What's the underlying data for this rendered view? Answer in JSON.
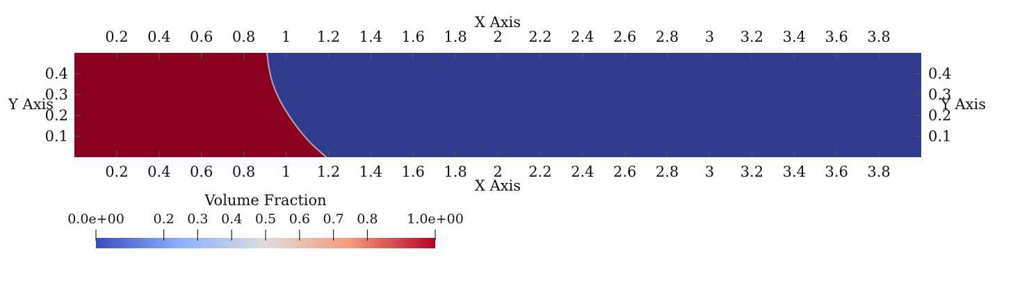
{
  "chart_data": {
    "type": "heatmap",
    "title": "",
    "xlabel": "X Axis",
    "ylabel": "Y Axis",
    "xlim": [
      0.0,
      4.0
    ],
    "ylim": [
      0.0,
      0.5
    ],
    "x_ticks": [
      "0.2",
      "0.4",
      "0.6",
      "0.8",
      "1",
      "1.2",
      "1.4",
      "1.6",
      "1.8",
      "2",
      "2.2",
      "2.4",
      "2.6",
      "2.8",
      "3",
      "3.2",
      "3.4",
      "3.6",
      "3.8"
    ],
    "x_tick_values": [
      0.2,
      0.4,
      0.6,
      0.8,
      1.0,
      1.2,
      1.4,
      1.6,
      1.8,
      2.0,
      2.2,
      2.4,
      2.6,
      2.8,
      3.0,
      3.2,
      3.4,
      3.6,
      3.8
    ],
    "y_ticks": [
      "0.1",
      "0.2",
      "0.3",
      "0.4"
    ],
    "y_tick_values": [
      0.1,
      0.2,
      0.3,
      0.4
    ],
    "field": "Volume Fraction",
    "regions": [
      {
        "value": 1.0,
        "description": "fluid column"
      },
      {
        "value": 0.0,
        "description": "empty"
      }
    ],
    "interface_points": [
      {
        "x": 0.91,
        "y": 0.5
      },
      {
        "x": 0.92,
        "y": 0.41
      },
      {
        "x": 0.95,
        "y": 0.31
      },
      {
        "x": 1.01,
        "y": 0.2
      },
      {
        "x": 1.1,
        "y": 0.08
      },
      {
        "x": 1.19,
        "y": 0.0
      }
    ],
    "colorbar": {
      "title": "Volume Fraction",
      "range": [
        0.0,
        1.0
      ],
      "tick_labels": [
        "0.0e+00",
        "0.2",
        "0.3",
        "0.4",
        "0.5",
        "0.6",
        "0.7",
        "0.8",
        "1.0e+00"
      ],
      "tick_values": [
        0.0,
        0.2,
        0.3,
        0.4,
        0.5,
        0.6,
        0.7,
        0.8,
        1.0
      ],
      "colormap": [
        "#3b4cc0",
        "#8db0fe",
        "#dddddd",
        "#f49a7b",
        "#b40426"
      ],
      "placement": "bottom-left"
    },
    "colors": {
      "high": "#8b0020",
      "low": "#303d8f",
      "interface": "#b8a6b0"
    }
  }
}
